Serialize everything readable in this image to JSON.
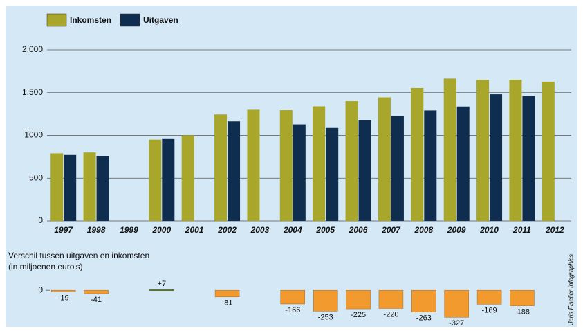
{
  "chart_data": [
    {
      "type": "bar",
      "categories": [
        "1997",
        "1998",
        "1999",
        "2000",
        "2001",
        "2002",
        "2003",
        "2004",
        "2005",
        "2006",
        "2007",
        "2008",
        "2009",
        "2010",
        "2011",
        "2012"
      ],
      "series": [
        {
          "name": "Inkomsten",
          "color": "#a8a62b",
          "values": [
            790,
            800,
            null,
            950,
            1000,
            1245,
            1300,
            1295,
            1340,
            1400,
            1445,
            1555,
            1665,
            1650,
            1650,
            1628
          ]
        },
        {
          "name": "Uitgaven",
          "color": "#0f2d4e",
          "values": [
            771,
            759,
            null,
            957,
            null,
            1164,
            null,
            1129,
            1087,
            1175,
            1225,
            1292,
            1338,
            1481,
            1462,
            null
          ]
        }
      ],
      "ylim": [
        0,
        2000
      ],
      "yticks": [
        0,
        500,
        1000,
        {
          "value": 1500,
          "label": "1.500"
        },
        {
          "value": 2000,
          "label": "2.000"
        }
      ],
      "grid": true
    },
    {
      "type": "bar",
      "title": "Verschil tussen uitgaven en inkomsten",
      "subtitle": "(in miljoenen euro's)",
      "values": [
        -19,
        -41,
        null,
        7,
        null,
        -81,
        null,
        -166,
        -253,
        -225,
        -220,
        -263,
        -327,
        -169,
        -188,
        null
      ],
      "value_labels": [
        "-19",
        "-41",
        null,
        "+7",
        null,
        "-81",
        null,
        "-166",
        "-253",
        "-225",
        "-220",
        "-263",
        "-327",
        "-169",
        "-188",
        null
      ],
      "color": "#f39a2f",
      "positive_color": "#2f7a3a",
      "ylim": [
        -400,
        160
      ],
      "yticks": [
        0
      ],
      "grid": false,
      "credit": "Joris Fiselier Infographics"
    }
  ]
}
